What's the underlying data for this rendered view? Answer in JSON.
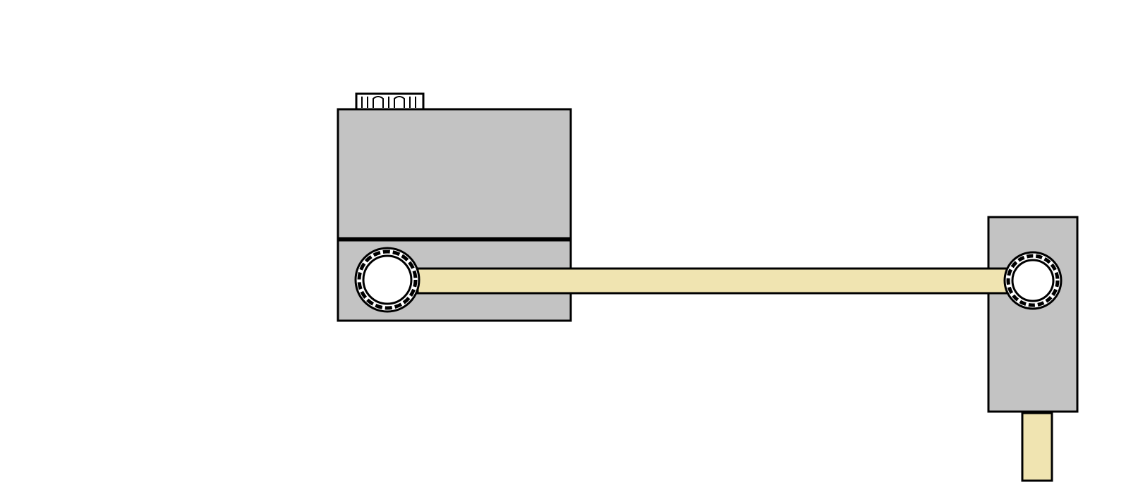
{
  "colors": {
    "background": "#ffffff",
    "outline": "#000000",
    "body_gray": "#c3c3c3",
    "rod_beige": "#f0e4b1",
    "bearing_white": "#ffffff"
  },
  "parts": {
    "left_block": "body",
    "right_block": "body",
    "connecting_rod": "rod",
    "output_shaft": "rod",
    "left_joint": "bearing",
    "right_joint": "bearing",
    "top_connector": "connector"
  }
}
